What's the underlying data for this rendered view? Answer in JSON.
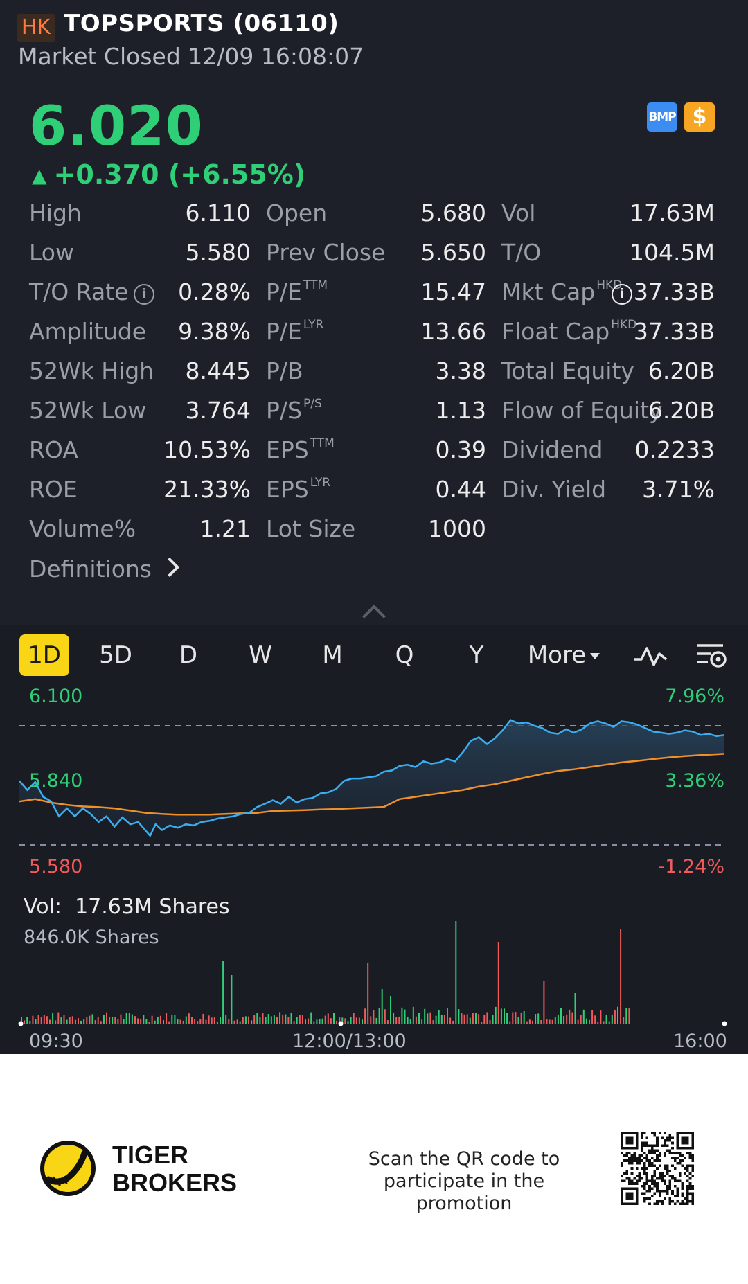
{
  "header": {
    "market": "HK",
    "title": "TOPSPORTS (06110)",
    "status": "Market Closed 12/09 16:08:07"
  },
  "quote": {
    "price": "6.020",
    "change": "+0.370 (+6.55%)",
    "direction_symbol": "▲",
    "up_color": "#2fcf77"
  },
  "badges": {
    "bmp": "BMP",
    "dollar": "$"
  },
  "stats": {
    "rows": [
      [
        {
          "label": "High",
          "value": "6.110"
        },
        {
          "label": "Open",
          "value": "5.680"
        },
        {
          "label": "Vol",
          "value": "17.63M"
        }
      ],
      [
        {
          "label": "Low",
          "value": "5.580"
        },
        {
          "label": "Prev Close",
          "value": "5.650"
        },
        {
          "label": "T/O",
          "value": "104.5M"
        }
      ],
      [
        {
          "label": "T/O Rate",
          "value": "0.28%"
        },
        {
          "label": "P/E",
          "sup": "TTM",
          "value": "15.47"
        },
        {
          "label": "Mkt Cap",
          "sup": "HKD",
          "value": "37.33B"
        }
      ],
      [
        {
          "label": "Amplitude",
          "value": "9.38%"
        },
        {
          "label": "P/E",
          "sup": "LYR",
          "value": "13.66"
        },
        {
          "label": "Float Cap",
          "sup": "HKD",
          "value": "37.33B"
        }
      ],
      [
        {
          "label": "52Wk High",
          "value": "8.445"
        },
        {
          "label": "P/B",
          "value": "3.38"
        },
        {
          "label": "Total Equity",
          "value": "6.20B"
        }
      ],
      [
        {
          "label": "52Wk Low",
          "value": "3.764"
        },
        {
          "label": "P/S",
          "sup": "P/S",
          "value": "1.13"
        },
        {
          "label": "Flow of Equity",
          "value": "6.20B"
        }
      ],
      [
        {
          "label": "ROA",
          "value": "10.53%"
        },
        {
          "label": "EPS",
          "sup": "TTM",
          "value": "0.39"
        },
        {
          "label": "Dividend",
          "value": "0.2233"
        }
      ],
      [
        {
          "label": "ROE",
          "value": "21.33%"
        },
        {
          "label": "EPS",
          "sup": "LYR",
          "value": "0.44"
        },
        {
          "label": "Div. Yield",
          "value": "3.71%"
        }
      ],
      [
        {
          "label": "Volume%",
          "value": "1.21"
        },
        {
          "label": "Lot Size",
          "value": "1000"
        },
        {
          "label": "",
          "value": ""
        }
      ]
    ],
    "definitions_label": "Definitions"
  },
  "tabs": {
    "items": [
      "1D",
      "5D",
      "D",
      "W",
      "M",
      "Q",
      "Y"
    ],
    "more_label": "More",
    "active": "1D"
  },
  "chart": {
    "y_labels": {
      "top": "6.100",
      "mid": "5.840",
      "bottom": "5.580"
    },
    "pct_labels": {
      "top": "7.96%",
      "mid": "3.36%",
      "bottom": "-1.24%"
    },
    "price_color": "#3aaef0",
    "avg_color": "#f0902a",
    "vol_label": "Vol:",
    "vol_value": "17.63M Shares",
    "vol_max": "846.0K Shares",
    "time_labels": [
      "09:30",
      "12:00/13:00",
      "16:00"
    ]
  },
  "footer": {
    "brand_line1": "TIGER",
    "brand_line2": "BROKERS",
    "promo_line1": "Scan the QR code to",
    "promo_line2": "participate in the promotion"
  }
}
